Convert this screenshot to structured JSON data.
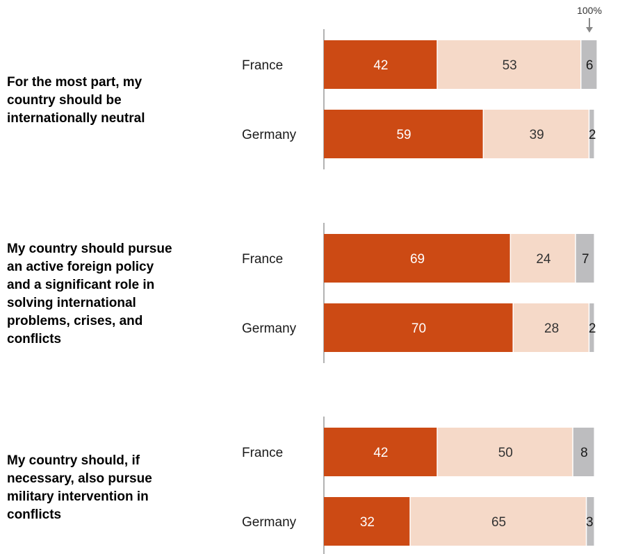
{
  "chart_data": {
    "type": "bar",
    "orientation": "horizontal",
    "stacked": true,
    "reference_label": "100%",
    "colors": {
      "first": "#cc4a14",
      "second": "#f5d9c8",
      "third": "#bdbdbf",
      "axis": "#999999"
    },
    "groups": [
      {
        "statement": "For the most part, my country should be internationally neutral",
        "bars": [
          {
            "country": "France",
            "values": [
              42,
              53,
              6
            ]
          },
          {
            "country": "Germany",
            "values": [
              59,
              39,
              2
            ]
          }
        ]
      },
      {
        "statement": "My country should pursue an active foreign policy and a significant role in solving international problems, crises, and conflicts",
        "bars": [
          {
            "country": "France",
            "values": [
              69,
              24,
              7
            ]
          },
          {
            "country": "Germany",
            "values": [
              70,
              28,
              2
            ]
          }
        ]
      },
      {
        "statement": "My country should, if necessary, also pursue military intervention in conflicts",
        "bars": [
          {
            "country": "France",
            "values": [
              42,
              50,
              8
            ]
          },
          {
            "country": "Germany",
            "values": [
              32,
              65,
              3
            ]
          }
        ]
      }
    ]
  }
}
